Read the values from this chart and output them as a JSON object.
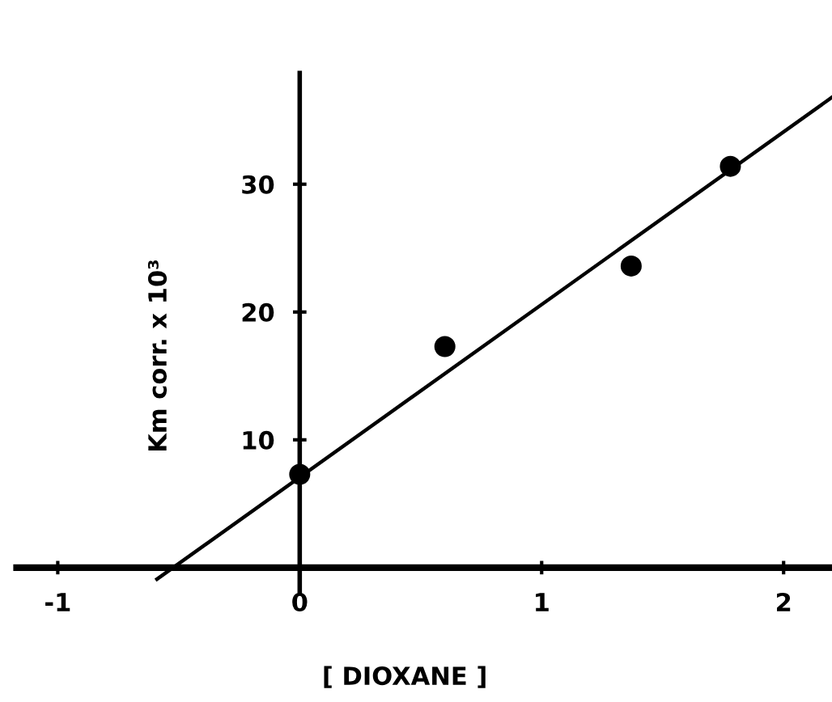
{
  "chart_data": {
    "type": "scatter",
    "xlabel": "[ DIOXANE ]",
    "ylabel": "Km corr. x 10³",
    "x": [
      0,
      0.6,
      1.37,
      1.78
    ],
    "series": [
      {
        "color": "#000000",
        "marker": "circle",
        "values": [
          7.3,
          17.3,
          23.6,
          31.4
        ]
      },
      {
        "type": "line",
        "color": "#000000",
        "marker": "none",
        "x": [
          -0.59,
          2.2
        ],
        "values": [
          -0.9,
          36.8
        ]
      }
    ],
    "xlim": [
      -1.17,
      2.2
    ],
    "ylim": [
      -2,
      38.7
    ],
    "xticks": [
      -1,
      0,
      1,
      2
    ],
    "yticks": [
      10,
      20,
      30
    ],
    "grid": false,
    "legend": false
  }
}
